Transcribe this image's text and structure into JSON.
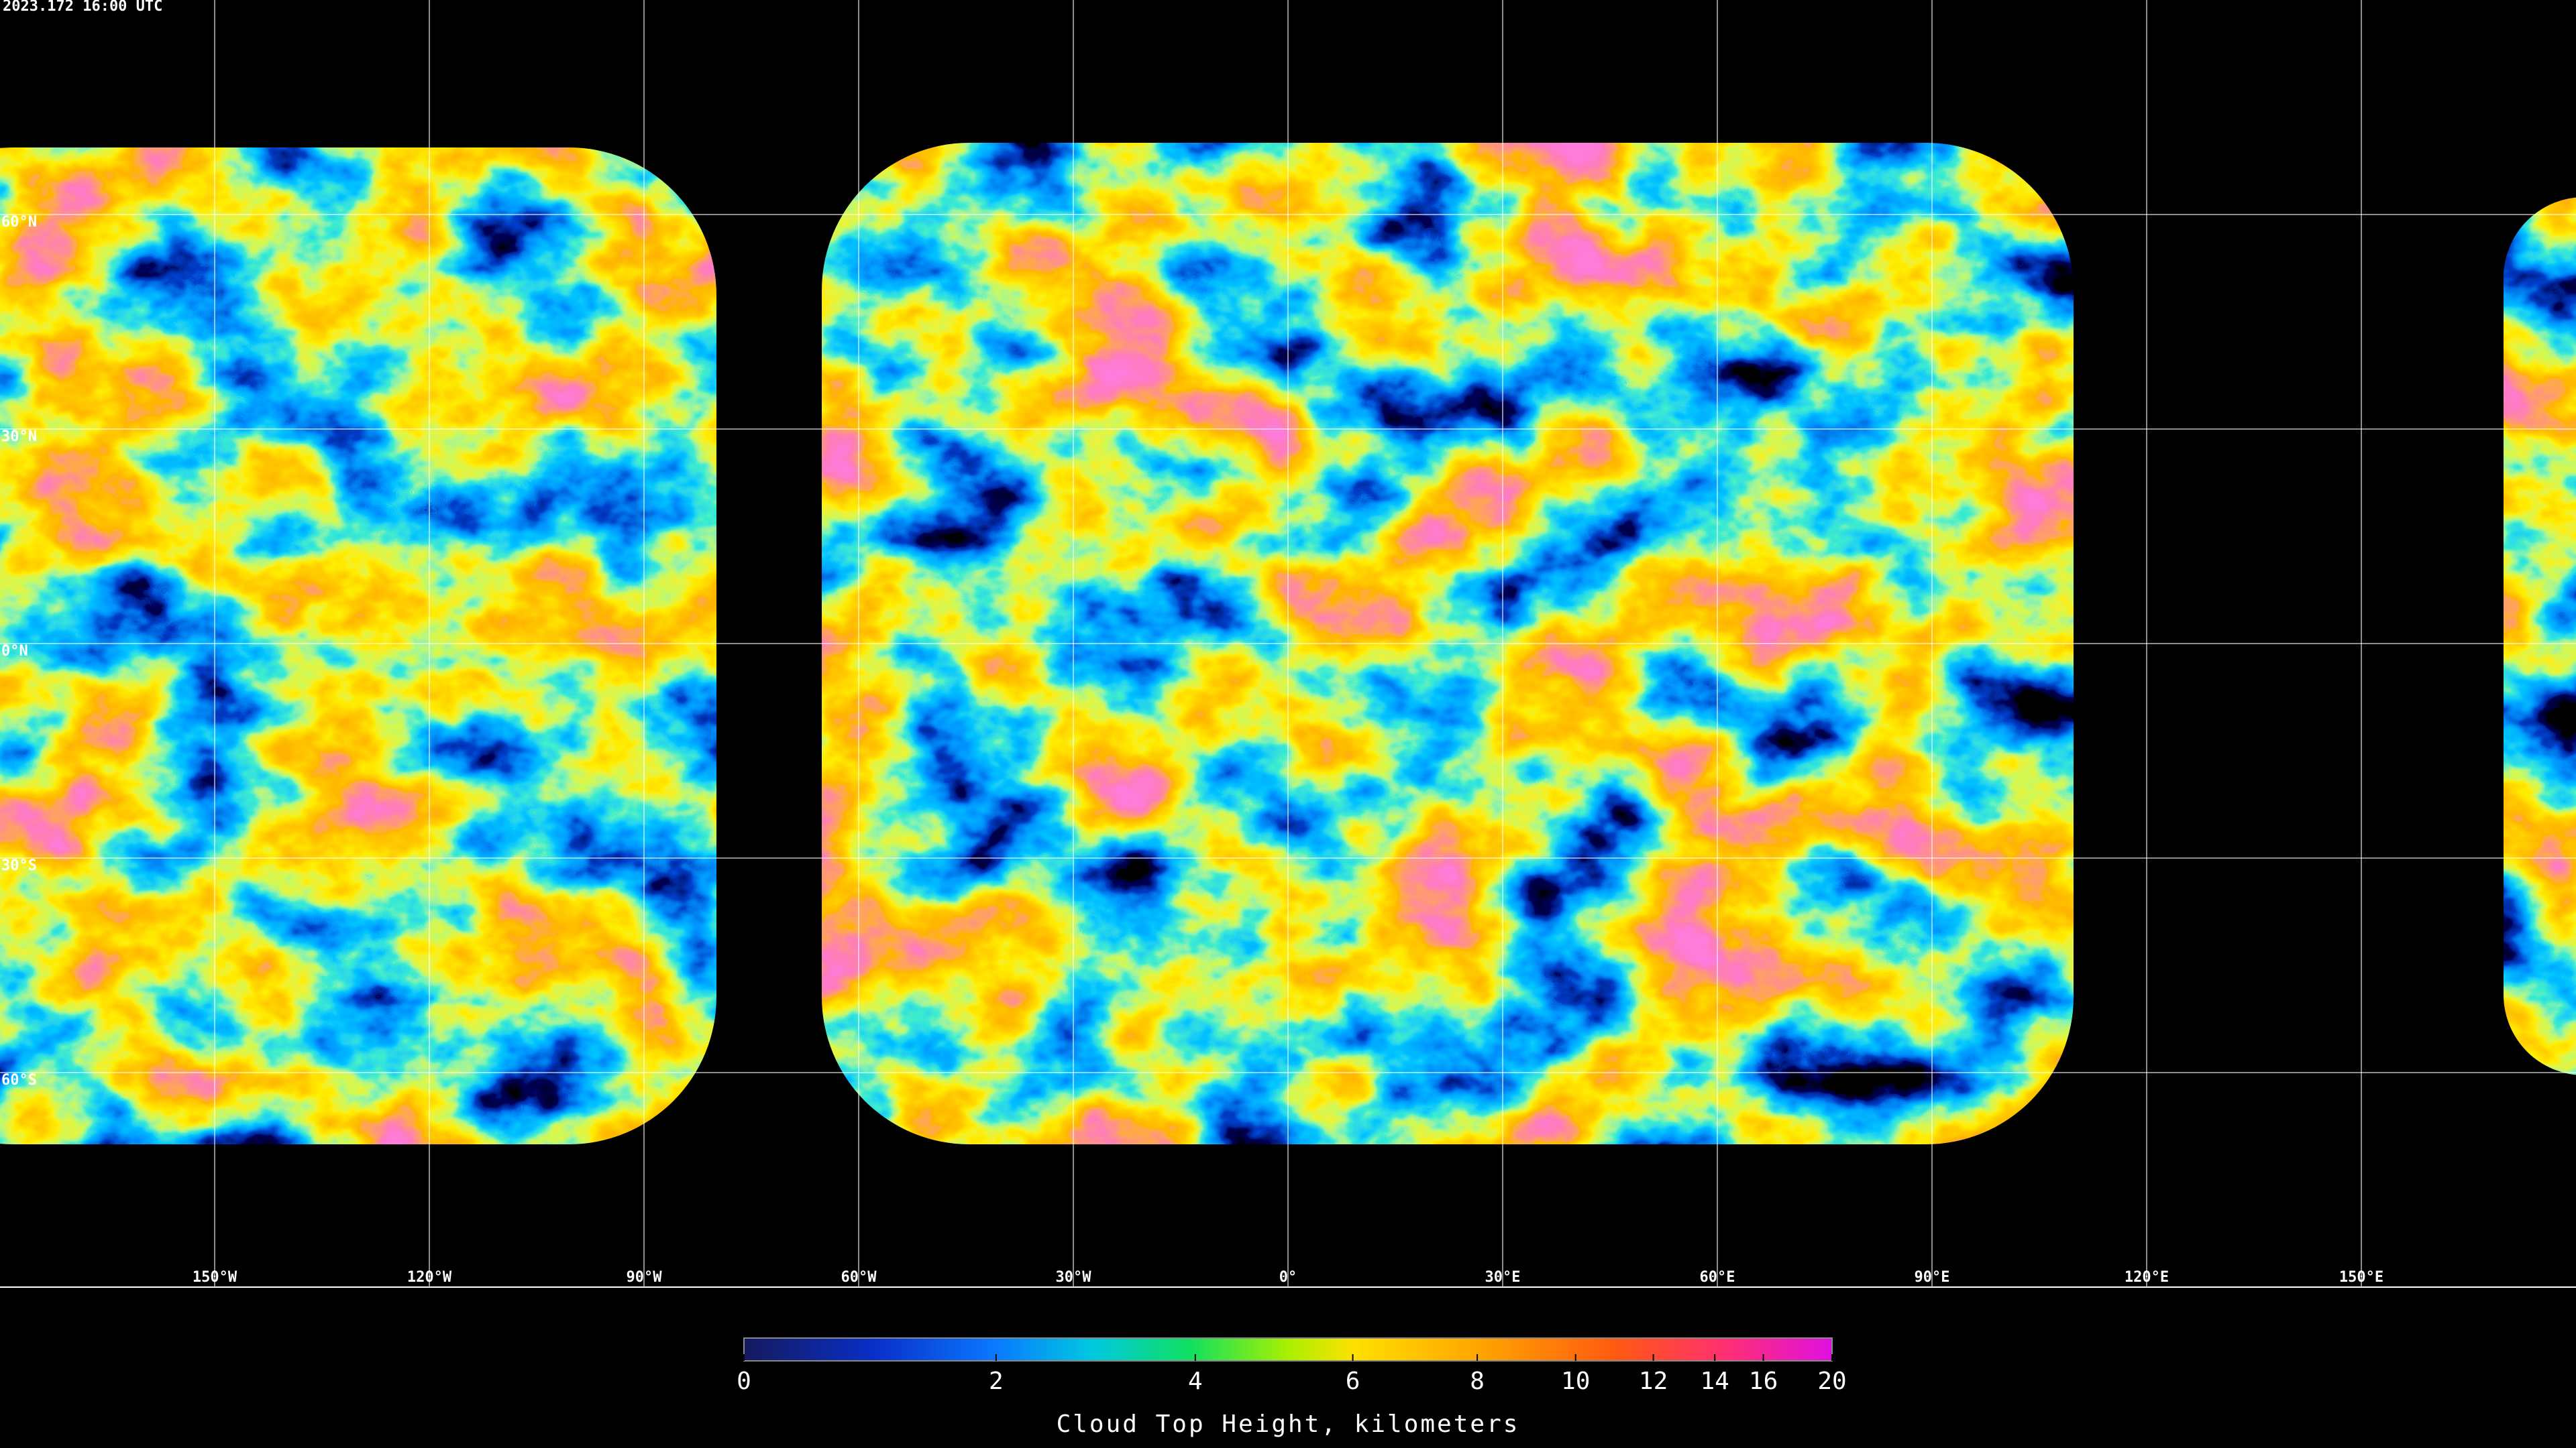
{
  "timestamp": "2023.172 16:00 UTC",
  "map": {
    "longitude_labels": [
      "150°W",
      "120°W",
      "90°W",
      "60°W",
      "30°W",
      "0°",
      "30°E",
      "60°E",
      "90°E",
      "120°E",
      "150°E"
    ],
    "latitude_labels": [
      "60°N",
      "30°N",
      "0°N",
      "30°S",
      "60°S"
    ]
  },
  "colorbar": {
    "lim": [
      0,
      20
    ],
    "ticks": [
      0,
      2,
      4,
      6,
      8,
      10,
      12,
      14,
      16,
      20
    ],
    "label": "Cloud Top Height, kilometers"
  }
}
